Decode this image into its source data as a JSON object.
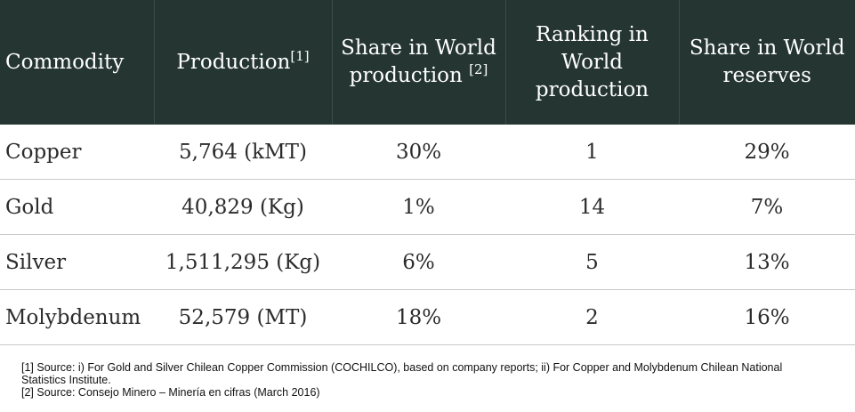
{
  "table": {
    "header": [
      {
        "text": "Commodity"
      },
      {
        "text": "Production",
        "note": "[1]"
      },
      {
        "text": "Share in World production ",
        "note": "[2]"
      },
      {
        "text": "Ranking in World production"
      },
      {
        "text": "Share in World reserves"
      }
    ],
    "rows": [
      [
        "Copper",
        "5,764 (kMT)",
        "30%",
        "1",
        "29%"
      ],
      [
        "Gold",
        "40,829 (Kg)",
        "1%",
        "14",
        "7%"
      ],
      [
        "Silver",
        "1,511,295 (Kg)",
        "6%",
        "5",
        "13%"
      ],
      [
        "Molybdenum",
        "52,579 (MT)",
        "18%",
        "2",
        "16%"
      ]
    ]
  },
  "footnotes": [
    "[1] Source: i) For Gold and Silver Chilean Copper Commission (COCHILCO), based on company reports; ii) For Copper and Molybdenum Chilean National Statistics Institute.",
    "[2] Source: Consejo Minero – Minería en cifras (March 2016)"
  ]
}
